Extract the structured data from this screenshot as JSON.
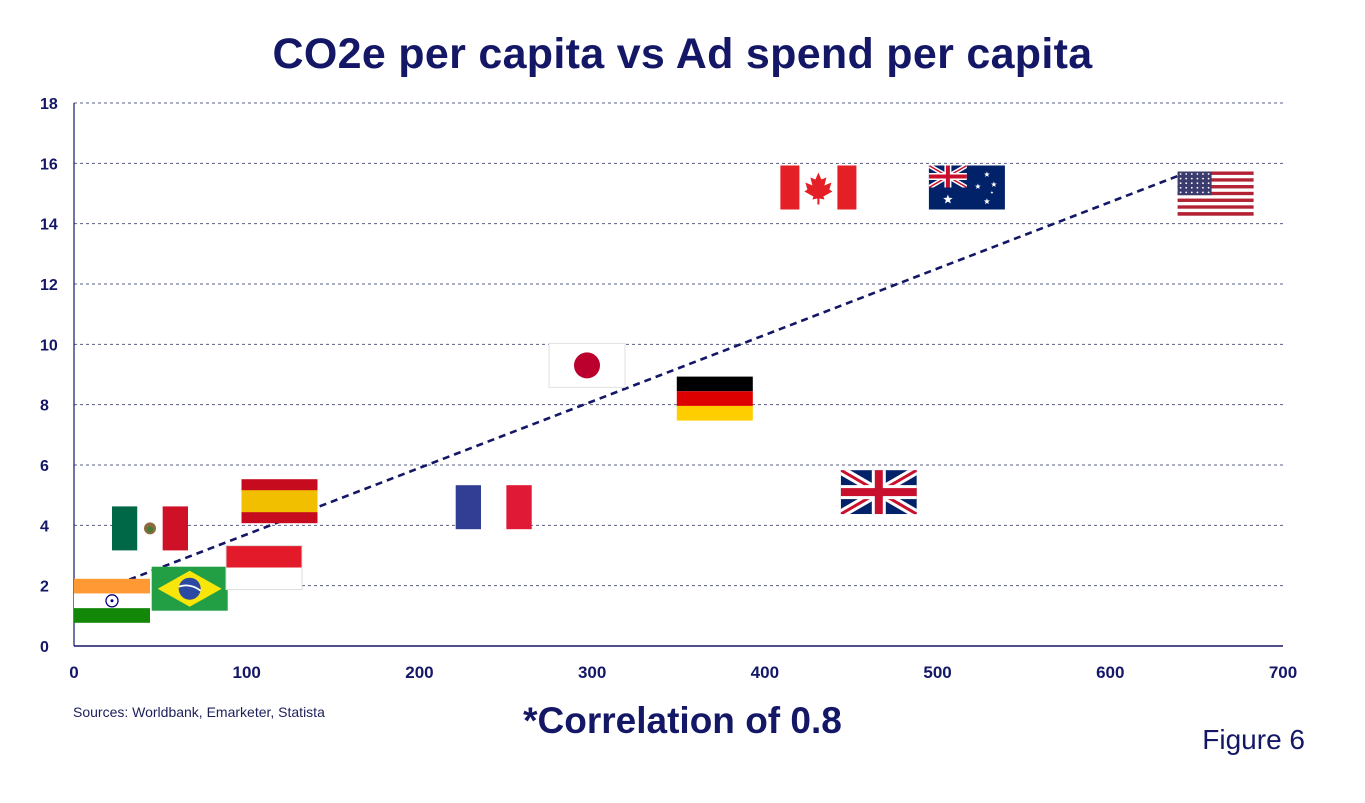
{
  "chart_data": {
    "type": "scatter",
    "title": "CO2e per capita vs Ad spend per capita",
    "xlabel": "",
    "ylabel": "",
    "xlim": [
      0,
      700
    ],
    "ylim": [
      0,
      18
    ],
    "x_ticks": [
      0,
      100,
      200,
      300,
      400,
      500,
      600,
      700
    ],
    "y_ticks": [
      0,
      2,
      4,
      6,
      8,
      10,
      12,
      14,
      16,
      18
    ],
    "grid": true,
    "points": [
      {
        "name": "India",
        "flag": "india-flag",
        "x": 22,
        "y": 1.5
      },
      {
        "name": "Brazil",
        "flag": "brazil-flag",
        "x": 67,
        "y": 1.9
      },
      {
        "name": "Mexico",
        "flag": "mexico-flag",
        "x": 44,
        "y": 3.9
      },
      {
        "name": "Indonesia",
        "flag": "indonesia-flag",
        "x": 110,
        "y": 2.6
      },
      {
        "name": "Spain",
        "flag": "spain-flag",
        "x": 119,
        "y": 4.8
      },
      {
        "name": "France",
        "flag": "france-flag",
        "x": 243,
        "y": 4.6
      },
      {
        "name": "Japan",
        "flag": "japan-flag",
        "x": 297,
        "y": 9.3
      },
      {
        "name": "Germany",
        "flag": "germany-flag",
        "x": 371,
        "y": 8.2
      },
      {
        "name": "Canada",
        "flag": "canada-flag",
        "x": 431,
        "y": 15.2
      },
      {
        "name": "Australia",
        "flag": "australia-flag",
        "x": 517,
        "y": 15.2
      },
      {
        "name": "United Kingdom",
        "flag": "uk-flag",
        "x": 466,
        "y": 5.1
      },
      {
        "name": "United States",
        "flag": "usa-flag",
        "x": 661,
        "y": 15.0
      }
    ],
    "trendline": {
      "x0": 32,
      "y0": 2.2,
      "x1": 640,
      "y1": 15.6,
      "style": "dashed"
    }
  },
  "notes": {
    "sources": "Sources: Worldbank, Emarketer, Statista",
    "correlation": "*Correlation of 0.8",
    "figure": "Figure 6"
  },
  "colors": {
    "navy": "#141766",
    "grid": "#5a5f86",
    "trend": "#141766"
  }
}
